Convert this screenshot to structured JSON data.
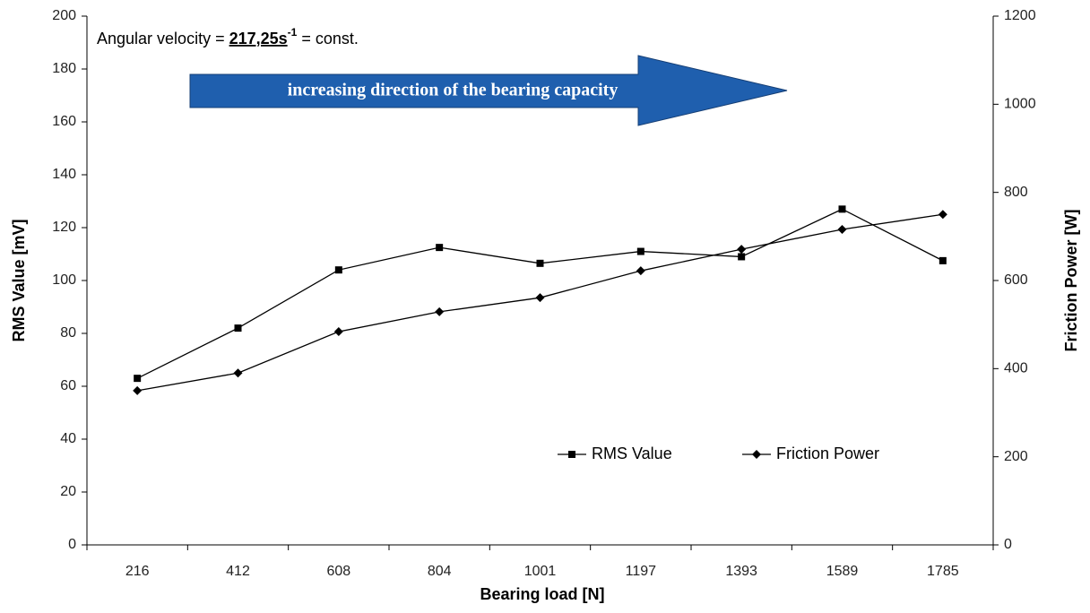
{
  "chart_data": {
    "type": "line",
    "categories": [
      "216",
      "412",
      "608",
      "804",
      "1001",
      "1197",
      "1393",
      "1589",
      "1785"
    ],
    "series": [
      {
        "name": "RMS Value",
        "color": "#000000",
        "marker": "square",
        "values": [
          63,
          82,
          104,
          112.5,
          106.5,
          111,
          109,
          127,
          107.5
        ]
      },
      {
        "name": "Friction Power",
        "color": "#000000",
        "marker": "diamond",
        "axis": "y2",
        "values": [
          350,
          390,
          484,
          529,
          561,
          622,
          671,
          716,
          750
        ]
      }
    ],
    "ylim": [
      0,
      200
    ],
    "yticks": [
      0,
      20,
      40,
      60,
      80,
      100,
      120,
      140,
      160,
      180,
      200
    ],
    "y2lim": [
      0,
      1200
    ],
    "y2ticks": [
      0,
      200,
      400,
      600,
      800,
      1000,
      1200
    ],
    "xlabel": "Bearing load [N]",
    "ylabel": "RMS Value [mV]",
    "y2label": "Friction Power [W]",
    "annotation": {
      "text": "Angular velocity =",
      "value": "217,25s",
      "exponent": "-1",
      "suffix": "= const."
    },
    "arrow_text": "increasing direction of the bearing capacity",
    "legend": "lower right",
    "grid": false
  }
}
